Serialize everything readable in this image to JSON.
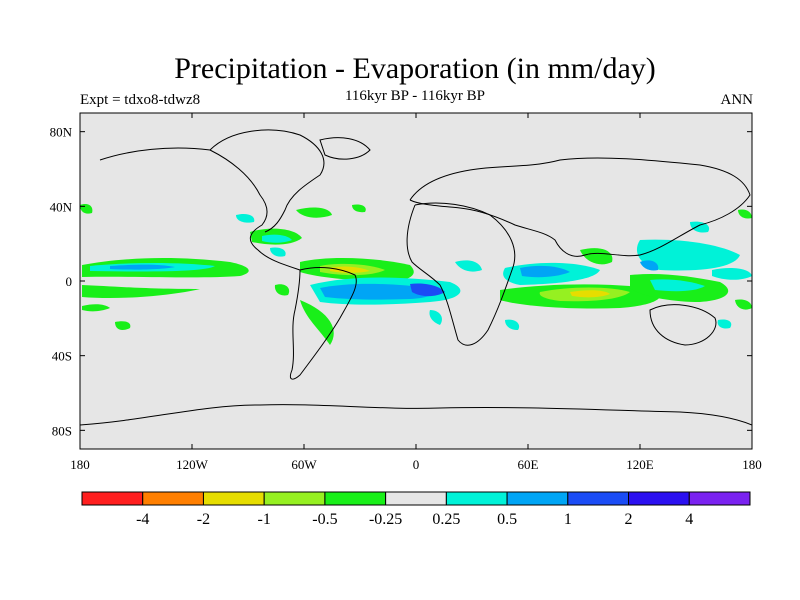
{
  "map": {
    "title": "Precipitation - Evaporation (in mm/day)",
    "subtitle": "116kyr BP - 116kyr BP",
    "left_label": "Expt = tdxo8-tdwz8",
    "right_label": "ANN",
    "projection": "cylindrical equidistant",
    "lon_range": [
      -180,
      180
    ],
    "lat_range": [
      -90,
      90
    ],
    "background_color": "#e6e6e6",
    "x_ticks": [
      {
        "lon": -180,
        "label": "180"
      },
      {
        "lon": -120,
        "label": "120W"
      },
      {
        "lon": -60,
        "label": "60W"
      },
      {
        "lon": 0,
        "label": "0"
      },
      {
        "lon": 60,
        "label": "60E"
      },
      {
        "lon": 120,
        "label": "120E"
      },
      {
        "lon": 180,
        "label": "180"
      }
    ],
    "y_ticks": [
      {
        "lat": 80,
        "label": "80N"
      },
      {
        "lat": 40,
        "label": "40N"
      },
      {
        "lat": 0,
        "label": "0"
      },
      {
        "lat": -40,
        "label": "40S"
      },
      {
        "lat": -80,
        "label": "80S"
      }
    ]
  },
  "colorbar": {
    "colors": [
      "#ff1f1f",
      "#ff7f00",
      "#e6dd00",
      "#96f021",
      "#19ef19",
      "#e6e6e6",
      "#00f2d8",
      "#00a5f5",
      "#1b4cf5",
      "#2b10f0",
      "#7a22f0"
    ],
    "labels": [
      "-4",
      "-2",
      "-1",
      "-0.5",
      "-0.25",
      "0.25",
      "0.5",
      "1",
      "2",
      "4"
    ]
  }
}
